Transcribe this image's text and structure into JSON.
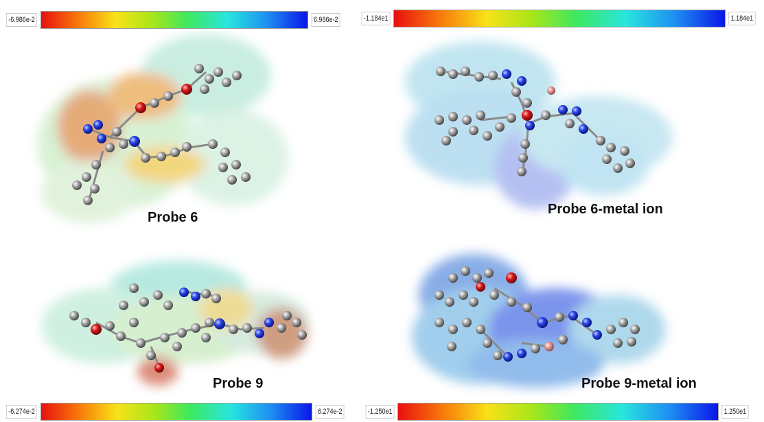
{
  "panels": {
    "probe6": {
      "title": "Probe 6",
      "colorbar": {
        "min_label": "-6.986e-2",
        "max_label": "6.986e-2"
      }
    },
    "probe6_metal": {
      "title": "Probe 6-metal ion",
      "colorbar": {
        "min_label": "-1.184e1",
        "max_label": "1.184e1"
      }
    },
    "probe9": {
      "title": "Probe 9",
      "colorbar": {
        "min_label": "-6.274e-2",
        "max_label": "6.274e-2"
      }
    },
    "probe9_metal": {
      "title": "Probe 9-metal ion",
      "colorbar": {
        "min_label": "-1.250e1",
        "max_label": "1.250e1"
      }
    }
  },
  "colors": {
    "scale_low": "#e81010",
    "scale_mid": "#3ee860",
    "scale_high": "#0a16e8",
    "carbon": "#9a9a9a",
    "nitrogen": "#1a3ae0",
    "oxygen": "#d01818",
    "metal": "#d88888"
  }
}
